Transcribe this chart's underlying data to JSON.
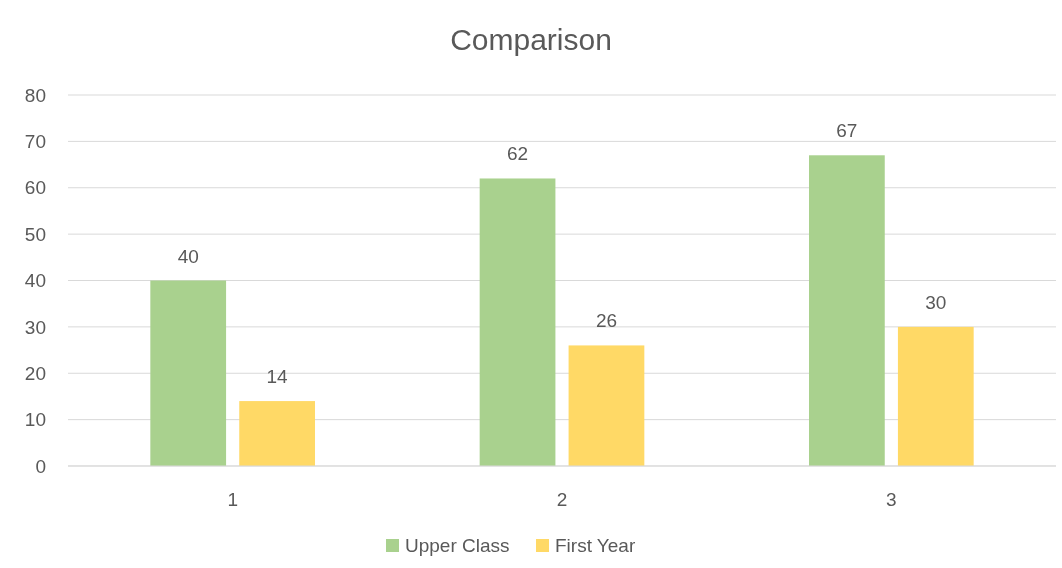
{
  "chart_data": {
    "type": "bar",
    "title": "Comparison",
    "categories": [
      "1",
      "2",
      "3"
    ],
    "series": [
      {
        "name": "Upper Class",
        "color": "#a9d18e",
        "values": [
          40,
          62,
          67
        ]
      },
      {
        "name": "First Year",
        "color": "#ffd966",
        "values": [
          14,
          26,
          30
        ]
      }
    ],
    "ylim": [
      0,
      80
    ],
    "yticks": [
      0,
      10,
      20,
      30,
      40,
      50,
      60,
      70,
      80
    ],
    "grid": "y",
    "legend": "bottom",
    "data_labels": true
  }
}
